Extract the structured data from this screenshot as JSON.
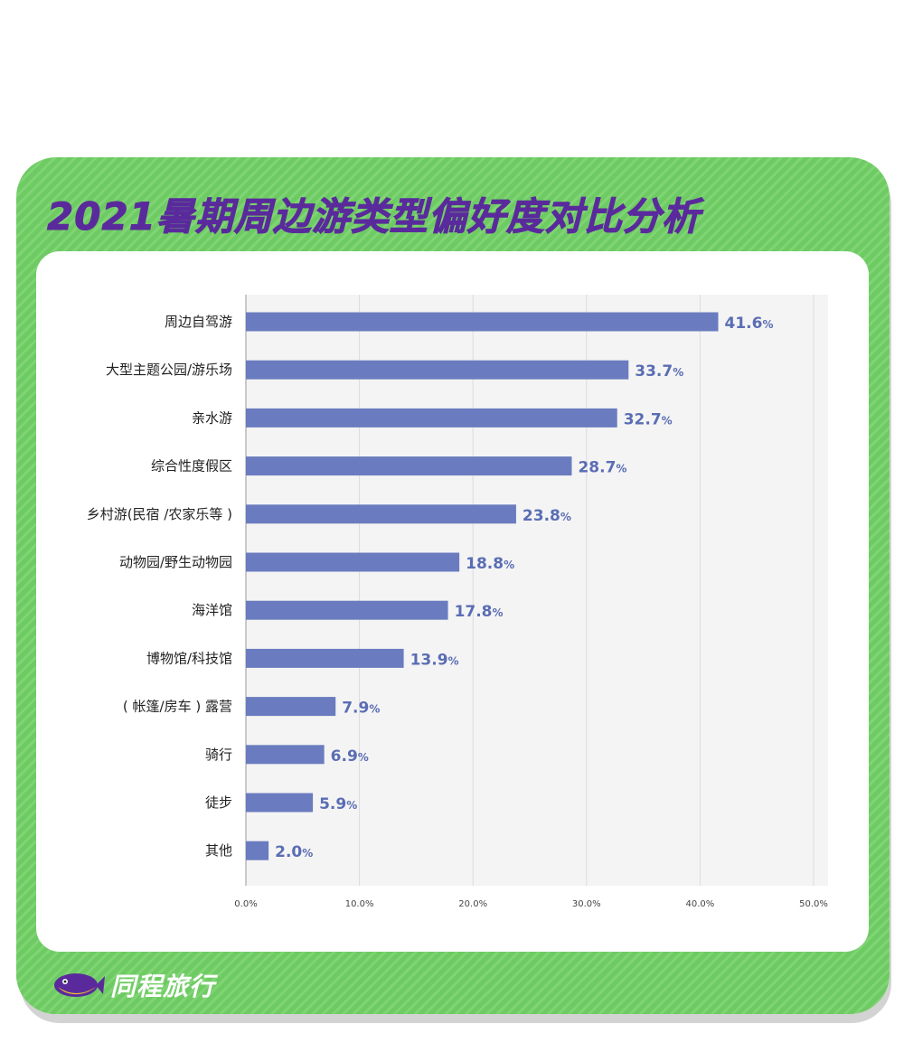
{
  "title": "2021暑期周边游类型偏好度对比分析",
  "brand": {
    "name": "同程旅行"
  },
  "colors": {
    "card_green": "#6ecb63",
    "title_purple": "#5a2a9c",
    "bar_blue": "#6a7cbf",
    "value_blue": "#5a6db4",
    "plot_bg": "#f4f4f4"
  },
  "chart_data": {
    "type": "bar",
    "orientation": "horizontal",
    "title": "2021暑期周边游类型偏好度对比分析",
    "xlabel": "",
    "ylabel": "",
    "xlim": [
      0,
      50
    ],
    "x_ticks": [
      "0.0%",
      "10.0%",
      "20.0%",
      "30.0%",
      "40.0%",
      "50.0%"
    ],
    "grid": true,
    "categories": [
      "周边自驾游",
      "大型主题公园/游乐场",
      "亲水游",
      "综合性度假区",
      "乡村游(民宿 /农家乐等 )",
      "动物园/野生动物园",
      "海洋馆",
      "博物馆/科技馆",
      "( 帐篷/房车 ) 露营",
      "骑行",
      "徒步",
      "其他"
    ],
    "values": [
      41.6,
      33.7,
      32.7,
      28.7,
      23.8,
      18.8,
      17.8,
      13.9,
      7.9,
      6.9,
      5.9,
      2.0
    ],
    "value_labels": [
      "41.6",
      "33.7",
      "32.7",
      "28.7",
      "23.8",
      "18.8",
      "17.8",
      "13.9",
      "7.9",
      "6.9",
      "5.9",
      "2.0"
    ],
    "value_unit": "%"
  }
}
